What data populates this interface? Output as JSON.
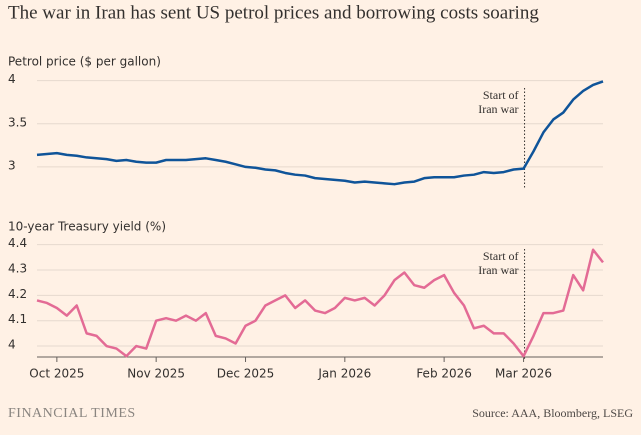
{
  "title": "The war in Iran has sent US petrol prices and borrowing costs soaring",
  "brand": "FINANCIAL TIMES",
  "source": "Source: AAA, Bloomberg, LSEG",
  "chart_data": [
    {
      "type": "line",
      "title": "Petrol price ($ per gallon)",
      "annotation": [
        "Start of",
        "Iran war"
      ],
      "categories": [
        null,
        null,
        null,
        null,
        null,
        null,
        null,
        null,
        null,
        null,
        null,
        null,
        null,
        null,
        null,
        null,
        null,
        null,
        null,
        null,
        null,
        null,
        null,
        null,
        null,
        null,
        null,
        null,
        null,
        null,
        null,
        null,
        null,
        null,
        null,
        null,
        null,
        null,
        null,
        null,
        null,
        null,
        null,
        null,
        null,
        null,
        null,
        null,
        null,
        null,
        null,
        null,
        null,
        null,
        null,
        null,
        null,
        null
      ],
      "series": [
        {
          "name": "Petrol price",
          "color": "#0f5499",
          "values": [
            3.14,
            3.15,
            3.16,
            3.14,
            3.13,
            3.11,
            3.1,
            3.09,
            3.07,
            3.08,
            3.06,
            3.05,
            3.05,
            3.08,
            3.08,
            3.08,
            3.09,
            3.1,
            3.08,
            3.06,
            3.03,
            3.0,
            2.99,
            2.97,
            2.96,
            2.93,
            2.91,
            2.9,
            2.87,
            2.86,
            2.85,
            2.84,
            2.82,
            2.83,
            2.82,
            2.81,
            2.8,
            2.82,
            2.83,
            2.87,
            2.88,
            2.88,
            2.88,
            2.9,
            2.91,
            2.94,
            2.93,
            2.94,
            2.97,
            2.98,
            3.18,
            3.4,
            3.55,
            3.63,
            3.78,
            3.88,
            3.95,
            3.99
          ]
        }
      ],
      "ylim": [
        2.75,
        4.1
      ],
      "yticks": [
        3,
        3.5,
        4
      ],
      "grid": true
    },
    {
      "type": "line",
      "title": "10-year Treasury yield (%)",
      "annotation": [
        "Start of",
        "Iran war"
      ],
      "categories": [
        null,
        null,
        "Oct 2025",
        null,
        null,
        null,
        null,
        null,
        null,
        null,
        null,
        null,
        "Nov 2025",
        null,
        null,
        null,
        null,
        null,
        null,
        null,
        null,
        "Dec 2025",
        null,
        null,
        null,
        null,
        null,
        null,
        null,
        null,
        null,
        "Jan 2026",
        null,
        null,
        null,
        null,
        null,
        null,
        null,
        null,
        null,
        "Feb 2026",
        null,
        null,
        null,
        null,
        null,
        null,
        null,
        "Mar 2026",
        null,
        null,
        null,
        null,
        null,
        null,
        null,
        null
      ],
      "series": [
        {
          "name": "10-year Treasury yield",
          "color": "#e36b95",
          "values": [
            4.18,
            4.17,
            4.15,
            4.12,
            4.16,
            4.05,
            4.04,
            4.0,
            3.99,
            3.96,
            4.0,
            3.99,
            4.1,
            4.11,
            4.1,
            4.12,
            4.1,
            4.13,
            4.04,
            4.03,
            4.01,
            4.08,
            4.1,
            4.16,
            4.18,
            4.2,
            4.15,
            4.18,
            4.14,
            4.13,
            4.15,
            4.19,
            4.18,
            4.19,
            4.16,
            4.2,
            4.26,
            4.29,
            4.24,
            4.23,
            4.26,
            4.28,
            4.21,
            4.16,
            4.07,
            4.08,
            4.05,
            4.05,
            4.01,
            3.96,
            4.04,
            4.13,
            4.13,
            4.14,
            4.28,
            4.22,
            4.38,
            4.33
          ]
        }
      ],
      "ylim": [
        3.95,
        4.45
      ],
      "yticks": [
        4,
        4.1,
        4.2,
        4.3,
        4.4
      ],
      "grid": true
    }
  ]
}
